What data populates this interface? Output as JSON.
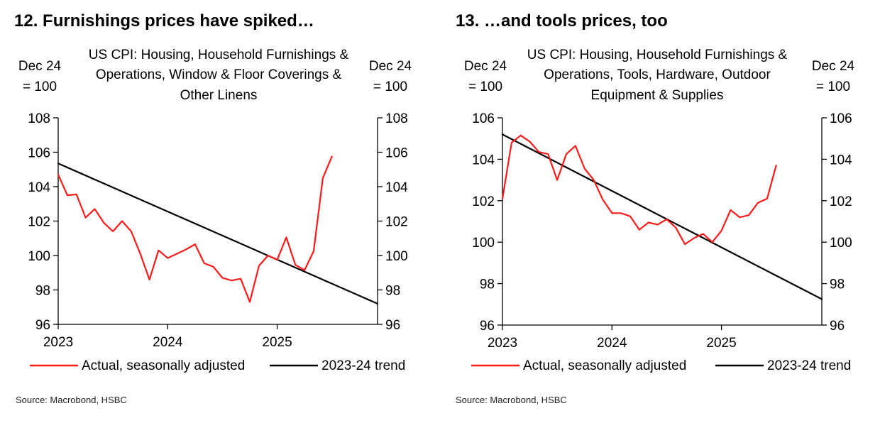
{
  "panels": [
    {
      "heading": "12. Furnishings prices have spiked…",
      "source": "Source: Macrobond, HSBC",
      "chart_data": {
        "type": "line",
        "title": "US CPI: Housing, Household Furnishings & Operations, Window & Floor Coverings & Other Linens",
        "title_lines": [
          "US CPI: Housing, Household Furnishings &",
          "Operations, Window & Floor Coverings &",
          "Other Linens"
        ],
        "ylabel_left": [
          "Dec 24",
          "= 100"
        ],
        "ylabel_right": [
          "Dec 24",
          "= 100"
        ],
        "ylim": [
          96,
          108
        ],
        "yticks": [
          96,
          98,
          100,
          102,
          104,
          106,
          108
        ],
        "xlim": [
          "2023-01",
          "2025-12"
        ],
        "xticks": [
          {
            "label": "2023",
            "date": "2023-01"
          },
          {
            "label": "2024",
            "date": "2024-01"
          },
          {
            "label": "2025",
            "date": "2025-01"
          }
        ],
        "grid": false,
        "legend_position": "bottom",
        "series": [
          {
            "name": "Actual, seasonally adjusted",
            "color": "#ff1a1a",
            "points": [
              [
                "2023-01",
                104.7
              ],
              [
                "2023-02",
                103.5
              ],
              [
                "2023-03",
                103.55
              ],
              [
                "2023-04",
                102.2
              ],
              [
                "2023-05",
                102.7
              ],
              [
                "2023-06",
                101.9
              ],
              [
                "2023-07",
                101.4
              ],
              [
                "2023-08",
                102.0
              ],
              [
                "2023-09",
                101.4
              ],
              [
                "2023-10",
                100.1
              ],
              [
                "2023-11",
                98.6
              ],
              [
                "2023-12",
                100.3
              ],
              [
                "2024-01",
                99.85
              ],
              [
                "2024-02",
                100.1
              ],
              [
                "2024-03",
                100.35
              ],
              [
                "2024-04",
                100.65
              ],
              [
                "2024-05",
                99.55
              ],
              [
                "2024-06",
                99.35
              ],
              [
                "2024-07",
                98.7
              ],
              [
                "2024-08",
                98.55
              ],
              [
                "2024-09",
                98.65
              ],
              [
                "2024-10",
                97.3
              ],
              [
                "2024-11",
                99.4
              ],
              [
                "2024-12",
                100.0
              ],
              [
                "2025-01",
                99.75
              ],
              [
                "2025-02",
                101.05
              ],
              [
                "2025-03",
                99.45
              ],
              [
                "2025-04",
                99.15
              ],
              [
                "2025-05",
                100.25
              ],
              [
                "2025-06",
                104.5
              ],
              [
                "2025-07",
                105.75
              ]
            ]
          },
          {
            "name": "2023-24 trend",
            "color": "#000000",
            "points": [
              [
                "2023-01",
                105.35
              ],
              [
                "2025-12",
                97.2
              ]
            ]
          }
        ]
      }
    },
    {
      "heading": "13. …and tools prices, too",
      "source": "Source: Macrobond, HSBC",
      "chart_data": {
        "type": "line",
        "title": "US CPI: Housing, Household Furnishings & Operations, Tools, Hardware, Outdoor Equipment & Supplies",
        "title_lines": [
          "US CPI: Housing, Household Furnishings &",
          "Operations, Tools, Hardware, Outdoor",
          "Equipment & Supplies"
        ],
        "ylabel_left": [
          "Dec 24",
          "= 100"
        ],
        "ylabel_right": [
          "Dec 24",
          "= 100"
        ],
        "ylim": [
          96,
          106
        ],
        "yticks": [
          96,
          98,
          100,
          102,
          104,
          106
        ],
        "xlim": [
          "2023-01",
          "2025-12"
        ],
        "xticks": [
          {
            "label": "2023",
            "date": "2023-01"
          },
          {
            "label": "2024",
            "date": "2024-01"
          },
          {
            "label": "2025",
            "date": "2025-01"
          }
        ],
        "grid": false,
        "legend_position": "bottom",
        "series": [
          {
            "name": "Actual, seasonally adjusted",
            "color": "#ff1a1a",
            "points": [
              [
                "2023-01",
                102.1
              ],
              [
                "2023-02",
                104.8
              ],
              [
                "2023-03",
                105.15
              ],
              [
                "2023-04",
                104.85
              ],
              [
                "2023-05",
                104.35
              ],
              [
                "2023-06",
                104.25
              ],
              [
                "2023-07",
                103.0
              ],
              [
                "2023-08",
                104.25
              ],
              [
                "2023-09",
                104.65
              ],
              [
                "2023-10",
                103.55
              ],
              [
                "2023-11",
                103.0
              ],
              [
                "2023-12",
                102.05
              ],
              [
                "2024-01",
                101.4
              ],
              [
                "2024-02",
                101.4
              ],
              [
                "2024-03",
                101.25
              ],
              [
                "2024-04",
                100.6
              ],
              [
                "2024-05",
                100.95
              ],
              [
                "2024-06",
                100.85
              ],
              [
                "2024-07",
                101.1
              ],
              [
                "2024-08",
                100.7
              ],
              [
                "2024-09",
                99.9
              ],
              [
                "2024-10",
                100.2
              ],
              [
                "2024-11",
                100.4
              ],
              [
                "2024-12",
                100.0
              ],
              [
                "2025-01",
                100.55
              ],
              [
                "2025-02",
                101.55
              ],
              [
                "2025-03",
                101.2
              ],
              [
                "2025-04",
                101.3
              ],
              [
                "2025-05",
                101.9
              ],
              [
                "2025-06",
                102.1
              ],
              [
                "2025-07",
                103.7
              ]
            ]
          },
          {
            "name": "2023-24 trend",
            "color": "#000000",
            "points": [
              [
                "2023-01",
                105.2
              ],
              [
                "2025-12",
                97.25
              ]
            ]
          }
        ]
      }
    }
  ]
}
